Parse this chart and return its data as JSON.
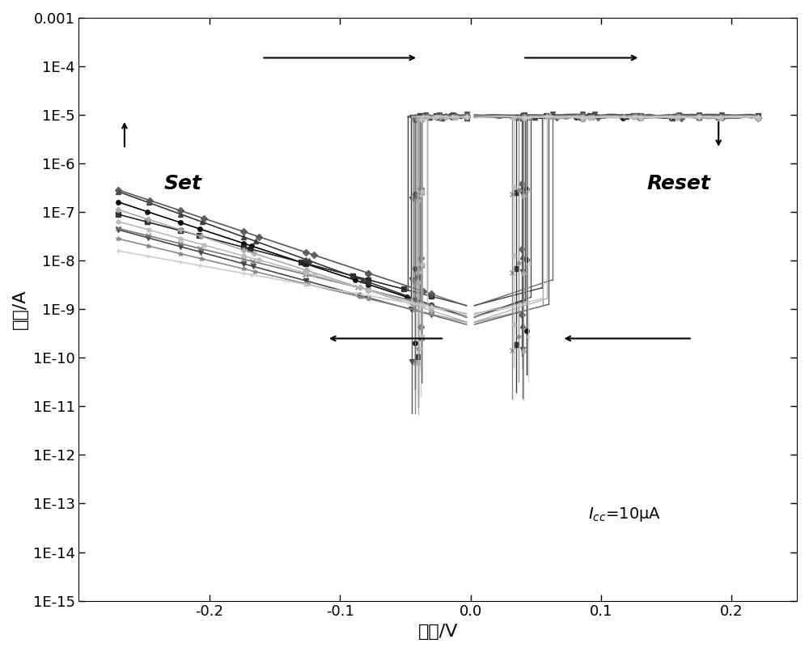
{
  "xlabel": "电压/V",
  "ylabel": "电流/A",
  "xlim": [
    -0.3,
    0.25
  ],
  "ylim_log": [
    1e-15,
    0.001
  ],
  "yticks": [
    1e-15,
    1e-14,
    1e-13,
    1e-12,
    1e-11,
    1e-10,
    1e-09,
    1e-08,
    1e-07,
    1e-06,
    1e-05,
    0.0001,
    0.001
  ],
  "ytick_labels": [
    "1E-15",
    "1E-14",
    "1E-13",
    "1E-12",
    "1E-11",
    "1E-10",
    "1E-9",
    "1E-8",
    "1E-7",
    "1E-6",
    "1E-5",
    "1E-4",
    "0.001"
  ],
  "xticks": [
    -0.2,
    -0.1,
    0.0,
    0.1,
    0.2
  ],
  "xtick_labels": [
    "-0.2",
    "-0.1",
    "0.0",
    "0.1",
    "0.2"
  ],
  "set_label": "Set",
  "reset_label": "Reset",
  "icc_label": "$I_{cc}$=10μA",
  "xlabel_fontsize": 16,
  "ylabel_fontsize": 16,
  "tick_fontsize": 13,
  "set_reset_fontsize": 18,
  "icc_fontsize": 14,
  "n_sweeps": 10
}
